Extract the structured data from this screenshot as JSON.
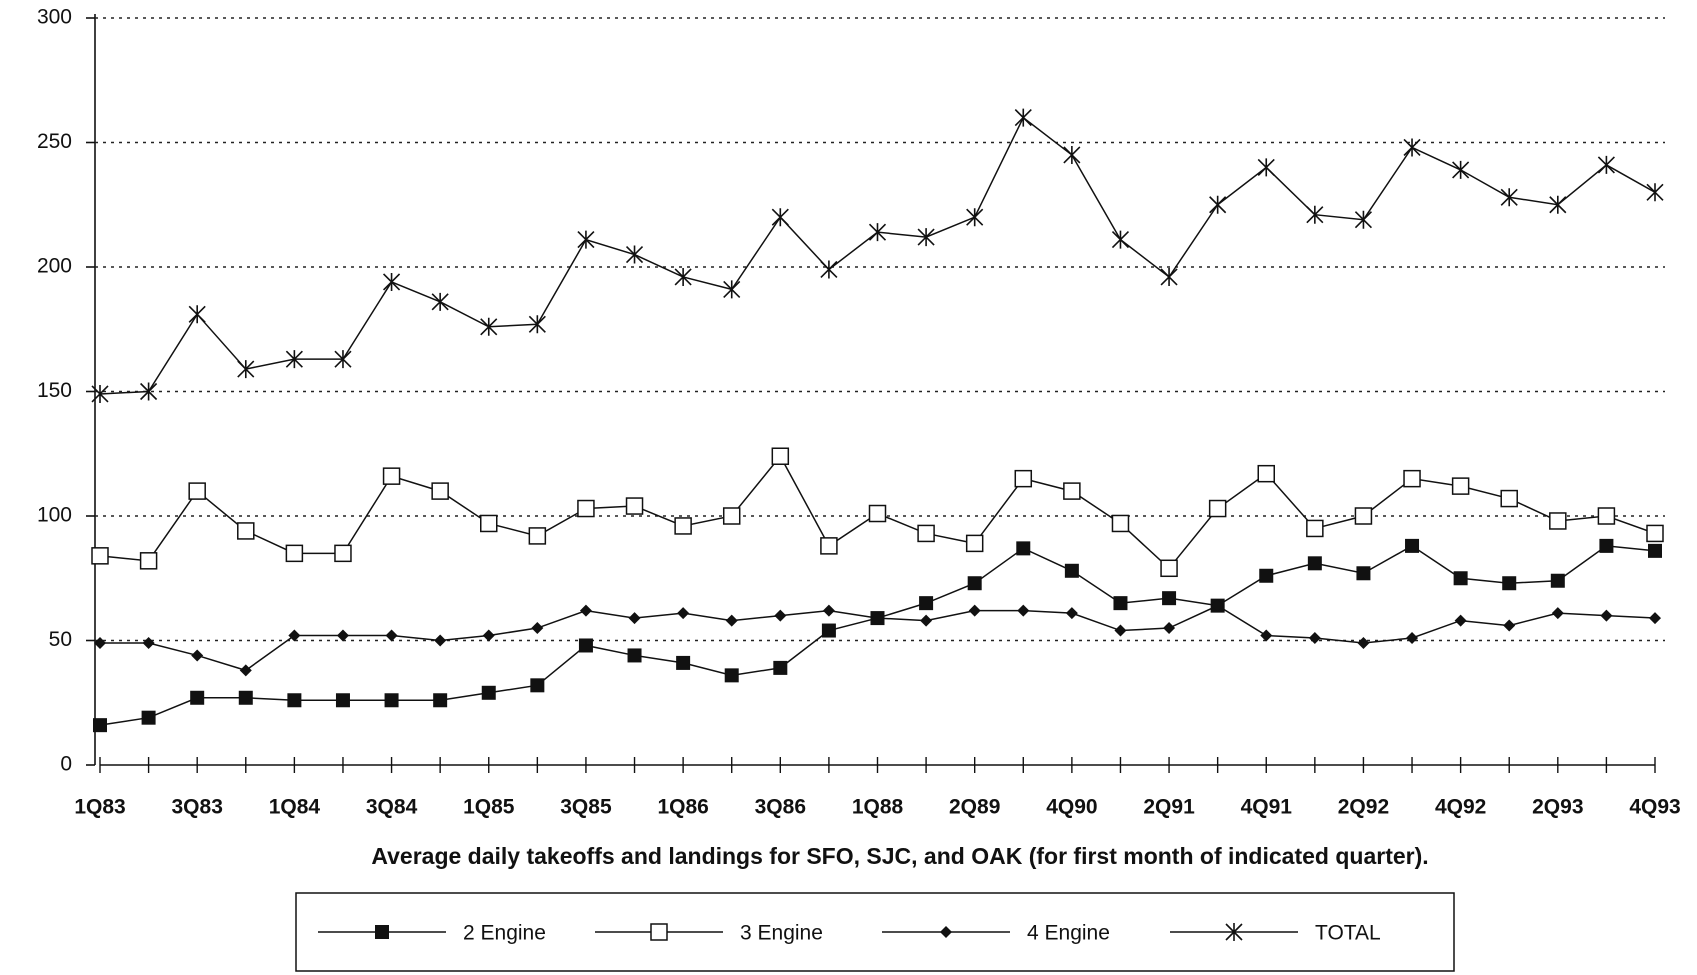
{
  "chart_data": {
    "type": "line",
    "xlabel": "Average daily takeoffs and landings for SFO, SJC, and OAK (for first month of indicated quarter).",
    "categories": [
      "1Q83",
      null,
      "3Q83",
      null,
      "1Q84",
      null,
      "3Q84",
      null,
      "1Q85",
      null,
      "3Q85",
      null,
      "1Q86",
      null,
      "3Q86",
      null,
      "1Q88",
      null,
      "2Q89",
      null,
      "4Q90",
      null,
      "2Q91",
      null,
      "4Q91",
      null,
      "2Q92",
      null,
      "4Q92",
      null,
      "2Q93",
      null,
      "4Q93"
    ],
    "series": [
      {
        "name": "2 Engine",
        "color": "#111111",
        "marker": "square",
        "values": [
          16,
          19,
          27,
          27,
          26,
          26,
          26,
          26,
          29,
          32,
          48,
          44,
          41,
          36,
          39,
          54,
          59,
          65,
          73,
          87,
          78,
          65,
          67,
          64,
          76,
          81,
          77,
          88,
          75,
          73,
          74,
          88,
          86
        ]
      },
      {
        "name": "3 Engine",
        "color": "#111111",
        "marker": "open-square",
        "values": [
          84,
          82,
          110,
          94,
          85,
          85,
          116,
          110,
          97,
          92,
          103,
          104,
          96,
          100,
          124,
          88,
          101,
          93,
          89,
          115,
          110,
          97,
          79,
          103,
          117,
          95,
          100,
          115,
          112,
          107,
          98,
          100,
          93
        ]
      },
      {
        "name": "4 Engine",
        "color": "#111111",
        "marker": "diamond",
        "values": [
          49,
          49,
          44,
          38,
          52,
          52,
          52,
          50,
          52,
          55,
          62,
          59,
          61,
          58,
          60,
          62,
          59,
          58,
          62,
          62,
          61,
          54,
          55,
          64,
          52,
          51,
          49,
          51,
          58,
          56,
          61,
          60,
          59
        ]
      },
      {
        "name": "TOTAL",
        "color": "#111111",
        "marker": "star",
        "values": [
          149,
          150,
          181,
          159,
          163,
          163,
          194,
          186,
          176,
          177,
          211,
          205,
          196,
          191,
          220,
          199,
          214,
          212,
          220,
          260,
          245,
          211,
          196,
          225,
          240,
          221,
          219,
          248,
          239,
          228,
          225,
          241,
          230
        ]
      }
    ],
    "ylim": [
      0,
      300
    ],
    "yticks": [
      0,
      50,
      100,
      150,
      200,
      250,
      300
    ],
    "grid": true
  }
}
